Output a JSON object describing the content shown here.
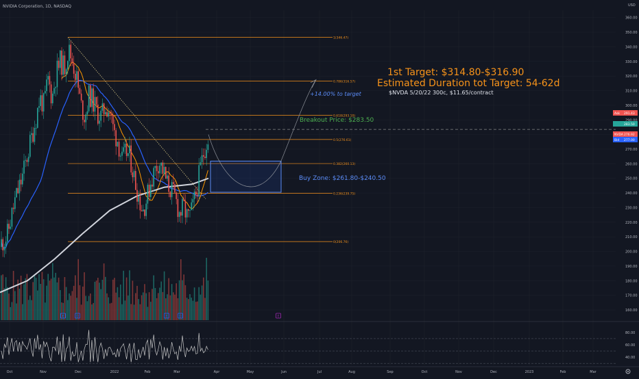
{
  "header": {
    "symbol_line": "NVIDIA Corporation, 1D, NASDAQ",
    "currency": "USD"
  },
  "toolbar": {
    "gear_icon": "gear-icon"
  },
  "colors": {
    "background": "#131722",
    "grid": "#1e222d",
    "up": "#26a69a",
    "down": "#ef5350",
    "fib": "#f7931a",
    "ma_blue": "#2962ff",
    "ma_white": "#d1d4dc",
    "ma_orange": "#ff9800",
    "buy_zone": "#2962ff",
    "annotation_orange": "#f7931a",
    "breakout_green": "#4caf50"
  },
  "chart_data": [
    {
      "type": "candlestick",
      "title": "NVIDIA Corporation, 1D, NASDAQ",
      "x_tick_labels": [
        "Oct",
        "Nov",
        "Dec",
        "2022",
        "Feb",
        "Mar",
        "Apr",
        "May",
        "Jun",
        "Jul",
        "Aug",
        "Sep",
        "Oct",
        "Nov",
        "Dec",
        "2023",
        "Feb",
        "Mar"
      ],
      "y_tick_labels": [
        "360.00",
        "350.00",
        "340.00",
        "330.00",
        "320.00",
        "310.00",
        "300.00",
        "290.00",
        "280.00",
        "270.00",
        "260.00",
        "250.00",
        "240.00",
        "230.00",
        "220.00",
        "210.00",
        "200.00",
        "190.00",
        "180.00",
        "170.00",
        "160.00"
      ],
      "ylim": [
        153,
        365
      ],
      "price_badges": [
        {
          "label": "Ask",
          "value": "291.43",
          "color": "#ef5350"
        },
        {
          "label": "",
          "value": "283.50",
          "color": "#26a69a"
        },
        {
          "label": "NVDA",
          "value": "276.92",
          "color": "#ef5350"
        },
        {
          "label": "Bid",
          "value": "277.00",
          "color": "#2962ff"
        }
      ],
      "fib_levels": [
        {
          "label": "1(346.47)",
          "value": 346.47
        },
        {
          "label": "0.786(316.57)",
          "value": 316.57
        },
        {
          "label": "0.618(293.10)",
          "value": 293.1
        },
        {
          "label": "0.5(276.61)",
          "value": 276.61
        },
        {
          "label": "0.382(260.13)",
          "value": 260.13
        },
        {
          "label": "0.236(239.75)",
          "value": 239.75
        },
        {
          "label": "0(206.76)",
          "value": 206.76
        }
      ],
      "annotations": {
        "target_1": "1st Target: $314.80-$316.90",
        "target_2": "Estimated Duration tot Target: 54-62d",
        "option_note": "$NVDA 5/20/22 300c, $11.65/contract",
        "pct_to_target": "+14.00% to target",
        "breakout": "Breakout Price: $283.50",
        "buy_zone": "Buy Zone: $261.80-$240.50"
      },
      "buy_zone": [
        240.5,
        261.8
      ],
      "breakout_price": 283.5,
      "event_markers": [
        "E",
        "D",
        "E",
        "D",
        "E"
      ]
    },
    {
      "type": "line",
      "title": "",
      "y_tick_labels": [
        "80.00",
        "60.00",
        "40.00"
      ],
      "ylim": [
        28,
        92
      ],
      "levels": [
        70,
        50,
        30
      ]
    }
  ]
}
